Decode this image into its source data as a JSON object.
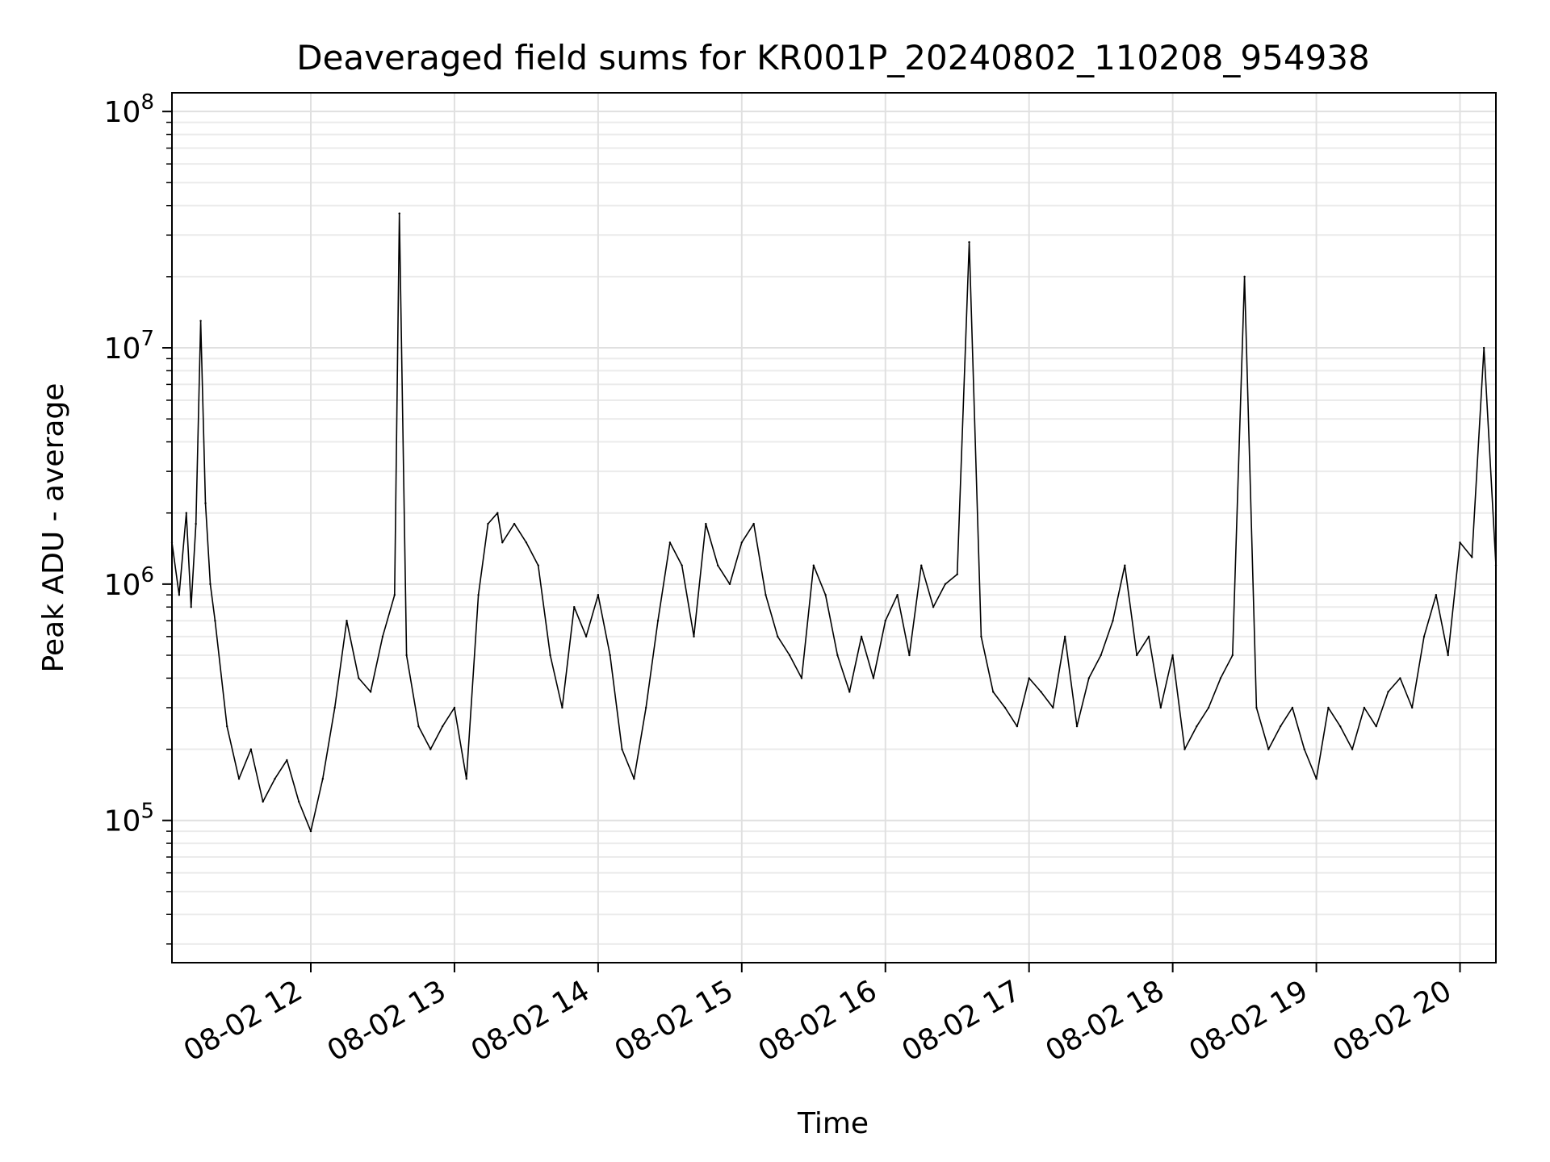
{
  "chart_data": {
    "type": "line",
    "title": "Deaveraged field sums for KR001P_20240802_110208_954938",
    "xlabel": "Time",
    "ylabel": "Peak ADU - average",
    "yscale": "log",
    "ylim": [
      25000,
      120000000
    ],
    "xlim": [
      "2024-08-02 11:02",
      "2024-08-02 20:15"
    ],
    "grid": true,
    "line_color": "#000000",
    "x_ticks": [
      {
        "value": "2024-08-02 12:00",
        "label": "08-02 12"
      },
      {
        "value": "2024-08-02 13:00",
        "label": "08-02 13"
      },
      {
        "value": "2024-08-02 14:00",
        "label": "08-02 14"
      },
      {
        "value": "2024-08-02 15:00",
        "label": "08-02 15"
      },
      {
        "value": "2024-08-02 16:00",
        "label": "08-02 16"
      },
      {
        "value": "2024-08-02 17:00",
        "label": "08-02 17"
      },
      {
        "value": "2024-08-02 18:00",
        "label": "08-02 18"
      },
      {
        "value": "2024-08-02 19:00",
        "label": "08-02 19"
      },
      {
        "value": "2024-08-02 20:00",
        "label": "08-02 20"
      }
    ],
    "y_ticks": [
      {
        "value": 100000,
        "base": "10",
        "exp": "5"
      },
      {
        "value": 1000000,
        "base": "10",
        "exp": "6"
      },
      {
        "value": 10000000,
        "base": "10",
        "exp": "7"
      },
      {
        "value": 100000000,
        "base": "10",
        "exp": "8"
      }
    ],
    "series": [
      {
        "x": [
          "2024-08-02 11:02",
          "2024-08-02 11:05",
          "2024-08-02 11:08",
          "2024-08-02 11:10",
          "2024-08-02 11:12",
          "2024-08-02 11:14",
          "2024-08-02 11:16",
          "2024-08-02 11:18",
          "2024-08-02 11:20",
          "2024-08-02 11:25",
          "2024-08-02 11:30",
          "2024-08-02 11:35",
          "2024-08-02 11:40",
          "2024-08-02 11:45",
          "2024-08-02 11:50",
          "2024-08-02 11:55",
          "2024-08-02 12:00",
          "2024-08-02 12:05",
          "2024-08-02 12:10",
          "2024-08-02 12:15",
          "2024-08-02 12:20",
          "2024-08-02 12:25",
          "2024-08-02 12:30",
          "2024-08-02 12:35",
          "2024-08-02 12:37",
          "2024-08-02 12:40",
          "2024-08-02 12:45",
          "2024-08-02 12:50",
          "2024-08-02 12:55",
          "2024-08-02 13:00",
          "2024-08-02 13:05",
          "2024-08-02 13:10",
          "2024-08-02 13:14",
          "2024-08-02 13:18",
          "2024-08-02 13:20",
          "2024-08-02 13:25",
          "2024-08-02 13:30",
          "2024-08-02 13:35",
          "2024-08-02 13:40",
          "2024-08-02 13:45",
          "2024-08-02 13:50",
          "2024-08-02 13:55",
          "2024-08-02 14:00",
          "2024-08-02 14:05",
          "2024-08-02 14:10",
          "2024-08-02 14:15",
          "2024-08-02 14:20",
          "2024-08-02 14:25",
          "2024-08-02 14:30",
          "2024-08-02 14:35",
          "2024-08-02 14:40",
          "2024-08-02 14:45",
          "2024-08-02 14:50",
          "2024-08-02 14:55",
          "2024-08-02 15:00",
          "2024-08-02 15:05",
          "2024-08-02 15:10",
          "2024-08-02 15:15",
          "2024-08-02 15:20",
          "2024-08-02 15:25",
          "2024-08-02 15:30",
          "2024-08-02 15:35",
          "2024-08-02 15:40",
          "2024-08-02 15:45",
          "2024-08-02 15:50",
          "2024-08-02 15:55",
          "2024-08-02 16:00",
          "2024-08-02 16:05",
          "2024-08-02 16:10",
          "2024-08-02 16:15",
          "2024-08-02 16:20",
          "2024-08-02 16:25",
          "2024-08-02 16:30",
          "2024-08-02 16:35",
          "2024-08-02 16:40",
          "2024-08-02 16:45",
          "2024-08-02 16:50",
          "2024-08-02 16:55",
          "2024-08-02 17:00",
          "2024-08-02 17:05",
          "2024-08-02 17:10",
          "2024-08-02 17:15",
          "2024-08-02 17:20",
          "2024-08-02 17:25",
          "2024-08-02 17:30",
          "2024-08-02 17:35",
          "2024-08-02 17:40",
          "2024-08-02 17:45",
          "2024-08-02 17:50",
          "2024-08-02 17:55",
          "2024-08-02 18:00",
          "2024-08-02 18:05",
          "2024-08-02 18:10",
          "2024-08-02 18:15",
          "2024-08-02 18:20",
          "2024-08-02 18:25",
          "2024-08-02 18:30",
          "2024-08-02 18:35",
          "2024-08-02 18:40",
          "2024-08-02 18:45",
          "2024-08-02 18:50",
          "2024-08-02 18:55",
          "2024-08-02 19:00",
          "2024-08-02 19:05",
          "2024-08-02 19:10",
          "2024-08-02 19:15",
          "2024-08-02 19:20",
          "2024-08-02 19:25",
          "2024-08-02 19:30",
          "2024-08-02 19:35",
          "2024-08-02 19:40",
          "2024-08-02 19:45",
          "2024-08-02 19:50",
          "2024-08-02 19:55",
          "2024-08-02 20:00",
          "2024-08-02 20:05",
          "2024-08-02 20:10",
          "2024-08-02 20:15"
        ],
        "y": [
          1500000,
          900000,
          2000000,
          800000,
          1800000,
          13000000,
          2200000,
          1000000,
          700000,
          250000,
          150000,
          200000,
          120000,
          150000,
          180000,
          120000,
          90000,
          150000,
          300000,
          700000,
          400000,
          350000,
          600000,
          900000,
          37000000,
          500000,
          250000,
          200000,
          250000,
          300000,
          150000,
          900000,
          1800000,
          2000000,
          1500000,
          1800000,
          1500000,
          1200000,
          500000,
          300000,
          800000,
          600000,
          900000,
          500000,
          200000,
          150000,
          300000,
          700000,
          1500000,
          1200000,
          600000,
          1800000,
          1200000,
          1000000,
          1500000,
          1800000,
          900000,
          600000,
          500000,
          400000,
          1200000,
          900000,
          500000,
          350000,
          600000,
          400000,
          700000,
          900000,
          500000,
          1200000,
          800000,
          1000000,
          1100000,
          28000000,
          600000,
          350000,
          300000,
          250000,
          400000,
          350000,
          300000,
          600000,
          250000,
          400000,
          500000,
          700000,
          1200000,
          500000,
          600000,
          300000,
          500000,
          200000,
          250000,
          300000,
          400000,
          500000,
          20000000,
          300000,
          200000,
          250000,
          300000,
          200000,
          150000,
          300000,
          250000,
          200000,
          300000,
          250000,
          350000,
          400000,
          300000,
          600000,
          900000,
          500000,
          1500000,
          1300000,
          10000000,
          1200000
        ]
      }
    ]
  }
}
